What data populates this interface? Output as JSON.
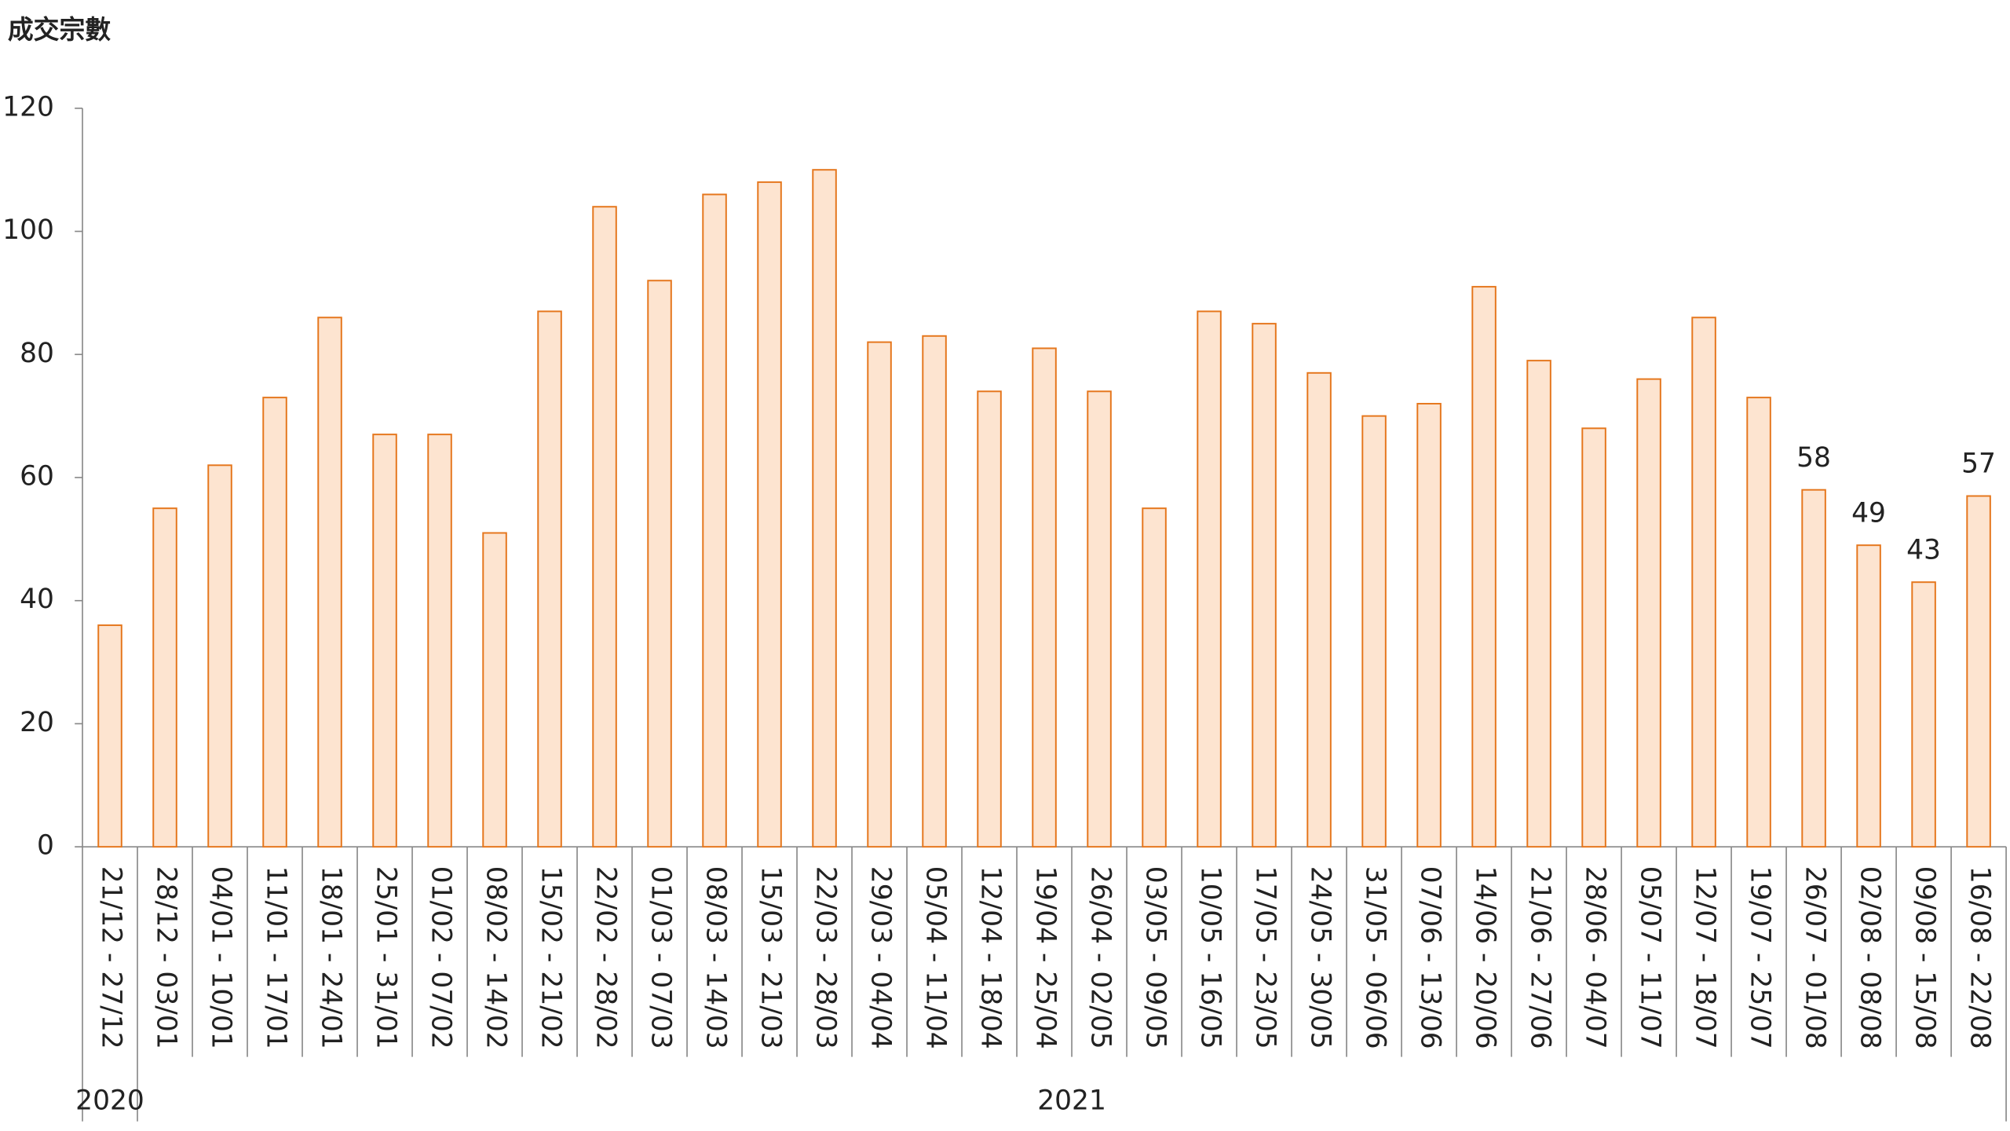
{
  "chart_data": {
    "type": "bar",
    "y_axis_label": "成交宗數",
    "categories": [
      "21/12 - 27/12",
      "28/12 - 03/01",
      "04/01 - 10/01",
      "11/01 - 17/01",
      "18/01 - 24/01",
      "25/01 - 31/01",
      "01/02 - 07/02",
      "08/02 - 14/02",
      "15/02 - 21/02",
      "22/02 - 28/02",
      "01/03 - 07/03",
      "08/03 - 14/03",
      "15/03 - 21/03",
      "22/03 - 28/03",
      "29/03 - 04/04",
      "05/04 - 11/04",
      "12/04 - 18/04",
      "19/04 - 25/04",
      "26/04 - 02/05",
      "03/05 - 09/05",
      "10/05 - 16/05",
      "17/05 - 23/05",
      "24/05 - 30/05",
      "31/05 - 06/06",
      "07/06 - 13/06",
      "14/06 - 20/06",
      "21/06 - 27/06",
      "28/06 - 04/07",
      "05/07 - 11/07",
      "12/07 - 18/07",
      "19/07 - 25/07",
      "26/07 - 01/08",
      "02/08 - 08/08",
      "09/08 - 15/08",
      "16/08 - 22/08"
    ],
    "values": [
      36,
      55,
      62,
      73,
      86,
      67,
      67,
      51,
      87,
      104,
      92,
      106,
      108,
      110,
      82,
      83,
      74,
      81,
      74,
      55,
      87,
      85,
      77,
      70,
      72,
      91,
      79,
      68,
      76,
      86,
      73,
      58,
      49,
      43,
      57
    ],
    "value_labels": [
      null,
      null,
      null,
      null,
      null,
      null,
      null,
      null,
      null,
      null,
      null,
      null,
      null,
      null,
      null,
      null,
      null,
      null,
      null,
      null,
      null,
      null,
      null,
      null,
      null,
      null,
      null,
      null,
      null,
      null,
      null,
      "58",
      "49",
      "43",
      "57"
    ],
    "groups": [
      {
        "label": "2020",
        "span": 1
      },
      {
        "label": "2021",
        "span": 34
      }
    ],
    "color": "#fde4d0",
    "edge_color": "#e5761c",
    "ylim": [
      0,
      120
    ],
    "yticks": [
      0,
      20,
      40,
      60,
      80,
      100,
      120
    ],
    "grid": false
  }
}
